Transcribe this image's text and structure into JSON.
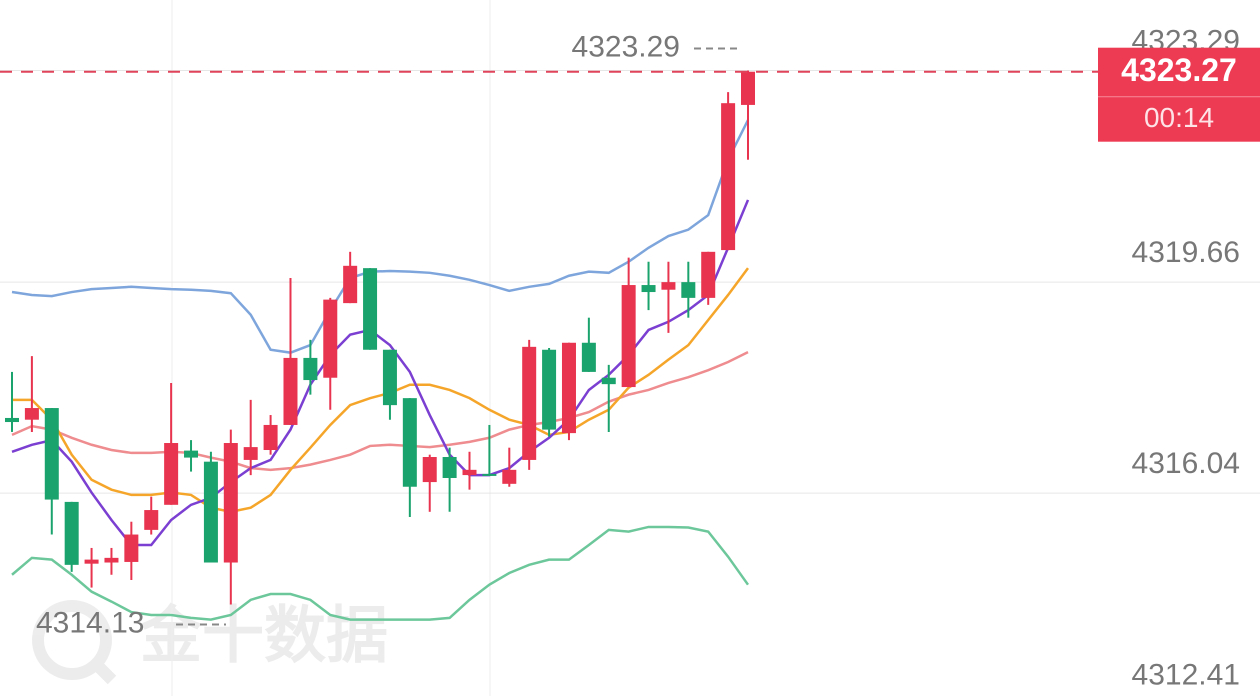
{
  "chart_data": {
    "type": "candlestick",
    "up_color": "#e8344e",
    "down_color": "#1ba36d",
    "open": [
      4317.33,
      4317.3,
      4317.5,
      4315.89,
      4314.83,
      4314.85,
      4314.86,
      4315.41,
      4315.84,
      4316.77,
      4316.58,
      4314.85,
      4316.61,
      4316.78,
      4317.21,
      4318.36,
      4318.02,
      4319.3,
      4319.9,
      4318.5,
      4317.67,
      4316.23,
      4316.66,
      4316.35,
      4316.37,
      4316.2,
      4316.61,
      4318.5,
      4317.07,
      4318.62,
      4318.02,
      4317.86,
      4319.61,
      4319.53,
      4319.66,
      4319.39,
      4320.21,
      4322.7
    ],
    "high": [
      4318.12,
      4318.39,
      4317.5,
      4315.89,
      4315.1,
      4315.1,
      4315.55,
      4315.98,
      4317.93,
      4316.95,
      4316.75,
      4317.13,
      4317.64,
      4317.38,
      4319.73,
      4318.67,
      4319.39,
      4320.18,
      4319.9,
      4318.5,
      4317.67,
      4316.7,
      4316.82,
      4316.75,
      4317.21,
      4316.82,
      4318.67,
      4318.53,
      4318.62,
      4319.05,
      4318.24,
      4320.08,
      4320.01,
      4320.01,
      4320.01,
      4320.18,
      4322.92,
      4323.29
    ],
    "low": [
      4317.09,
      4317.09,
      4315.33,
      4314.69,
      4314.42,
      4314.64,
      4314.55,
      4315.33,
      4315.84,
      4316.41,
      4314.85,
      4314.13,
      4316.35,
      4316.7,
      4317.21,
      4317.73,
      4317.47,
      4319.3,
      4318.5,
      4317.3,
      4315.63,
      4315.72,
      4315.72,
      4316.1,
      4316.34,
      4316.15,
      4316.44,
      4317.01,
      4316.95,
      4318.12,
      4317.09,
      4317.86,
      4319.18,
      4318.79,
      4319.05,
      4319.27,
      4320.21,
      4321.76
    ],
    "close": [
      4317.26,
      4317.5,
      4315.93,
      4314.81,
      4314.9,
      4314.93,
      4315.33,
      4315.75,
      4316.9,
      4316.65,
      4314.85,
      4316.9,
      4316.83,
      4317.21,
      4318.36,
      4317.98,
      4319.36,
      4319.94,
      4318.5,
      4317.55,
      4316.15,
      4316.66,
      4316.3,
      4316.44,
      4316.34,
      4316.44,
      4318.55,
      4317.13,
      4318.62,
      4318.12,
      4317.91,
      4319.61,
      4319.49,
      4319.66,
      4319.39,
      4320.18,
      4322.73,
      4323.27
    ],
    "series": [
      {
        "color": "#7ea6dc",
        "values": [
          4319.49,
          4319.44,
          4319.42,
          4319.49,
          4319.54,
          4319.56,
          4319.58,
          4319.56,
          4319.54,
          4319.53,
          4319.51,
          4319.47,
          4319.1,
          4318.5,
          4318.45,
          4318.58,
          4319.18,
          4319.73,
          4319.84,
          4319.85,
          4319.84,
          4319.82,
          4319.77,
          4319.7,
          4319.61,
          4319.51,
          4319.58,
          4319.63,
          4319.77,
          4319.84,
          4319.82,
          4320.01,
          4320.25,
          4320.45,
          4320.56,
          4320.81,
          4321.76,
          4322.44
        ]
      },
      {
        "color": "#6cc79a",
        "values": [
          4314.64,
          4314.93,
          4314.9,
          4314.64,
          4314.35,
          4314.18,
          4314.0,
          4313.95,
          4313.95,
          4313.9,
          4313.87,
          4313.95,
          4314.21,
          4314.31,
          4314.31,
          4314.21,
          4313.95,
          4313.87,
          4313.87,
          4313.87,
          4313.87,
          4313.87,
          4313.9,
          4314.21,
          4314.47,
          4314.67,
          4314.81,
          4314.9,
          4314.9,
          4315.15,
          4315.41,
          4315.38,
          4315.46,
          4315.46,
          4315.45,
          4315.38,
          4314.95,
          4314.47
        ]
      },
      {
        "color": "#ee8c8f",
        "values": [
          4317.04,
          4317.19,
          4317.13,
          4316.99,
          4316.87,
          4316.78,
          4316.73,
          4316.73,
          4316.75,
          4316.73,
          4316.65,
          4316.58,
          4316.47,
          4316.44,
          4316.47,
          4316.53,
          4316.61,
          4316.7,
          4316.85,
          4316.87,
          4316.85,
          4316.83,
          4316.87,
          4316.92,
          4316.99,
          4317.13,
          4317.21,
          4317.26,
          4317.33,
          4317.43,
          4317.61,
          4317.73,
          4317.81,
          4317.93,
          4318.03,
          4318.15,
          4318.29,
          4318.46
        ]
      },
      {
        "color": "#f5a62a",
        "values": [
          4317.64,
          4317.64,
          4317.3,
          4316.7,
          4316.27,
          4316.1,
          4316.01,
          4316.01,
          4316.05,
          4316.01,
          4315.79,
          4315.72,
          4315.79,
          4316.01,
          4316.44,
          4316.82,
          4317.21,
          4317.55,
          4317.67,
          4317.76,
          4317.9,
          4317.9,
          4317.81,
          4317.67,
          4317.47,
          4317.3,
          4317.21,
          4317.04,
          4317.09,
          4317.3,
          4317.47,
          4317.85,
          4318.07,
          4318.33,
          4318.58,
          4319.01,
          4319.44,
          4319.9
        ]
      },
      {
        "color": "#7b3fd1",
        "values": [
          4316.75,
          4316.87,
          4316.95,
          4316.58,
          4316.05,
          4315.58,
          4315.15,
          4315.15,
          4315.58,
          4315.84,
          4315.96,
          4316.23,
          4316.47,
          4316.61,
          4317.13,
          4317.9,
          4318.41,
          4318.76,
          4318.84,
          4318.58,
          4318.12,
          4317.38,
          4316.7,
          4316.35,
          4316.35,
          4316.47,
          4316.75,
          4316.99,
          4317.3,
          4317.81,
          4318.07,
          4318.41,
          4318.84,
          4318.98,
          4319.18,
          4319.44,
          4320.25,
          4321.07
        ]
      }
    ],
    "ylim": [
      4312.32,
      4324.5
    ],
    "yticks": [
      4312.41,
      4316.04,
      4319.66,
      4323.29
    ],
    "grid": true,
    "max_marker": 4323.29,
    "min_marker": 4314.13,
    "last_price": 4323.27,
    "countdown": "00:14",
    "watermark": "金十数据"
  }
}
